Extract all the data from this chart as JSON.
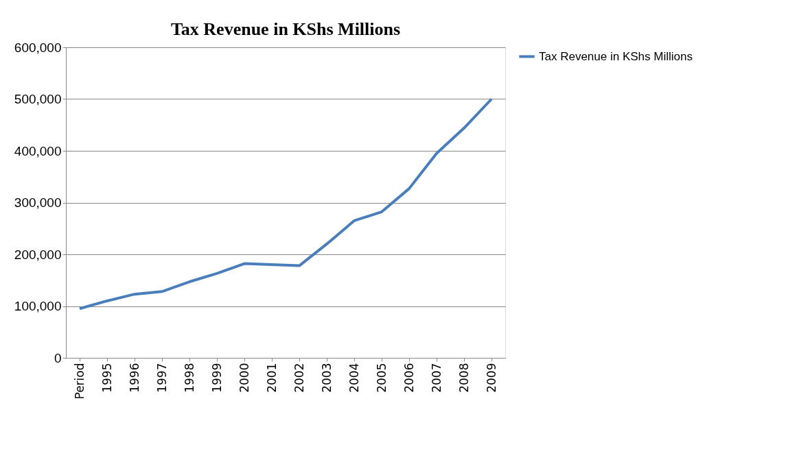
{
  "chart_data": {
    "type": "line",
    "title": "Tax Revenue in KShs Millions",
    "categories": [
      "Period",
      "1995",
      "1996",
      "1997",
      "1998",
      "1999",
      "2000",
      "2001",
      "2002",
      "2003",
      "2004",
      "2005",
      "2006",
      "2007",
      "2008",
      "2009"
    ],
    "series": [
      {
        "name": "Tax Revenue in KShs Millions",
        "color": "#4a7ebb",
        "values": [
          95000,
          110000,
          123000,
          128000,
          147000,
          163000,
          182000,
          180000,
          178000,
          220000,
          265000,
          282000,
          327000,
          395000,
          444000,
          500000
        ]
      }
    ],
    "ylim": [
      0,
      600000
    ],
    "yticks": [
      0,
      {
        "value": 100000,
        "label": "100,000"
      },
      {
        "value": 200000,
        "label": "200,000"
      },
      {
        "value": 300000,
        "label": "300,000"
      },
      {
        "value": 400000,
        "label": "400,000"
      },
      {
        "value": 500000,
        "label": "500,000"
      },
      {
        "value": 600000,
        "label": "600,000"
      }
    ],
    "grid": "y",
    "legend": "right",
    "marker": "none",
    "line_style": "solid"
  }
}
